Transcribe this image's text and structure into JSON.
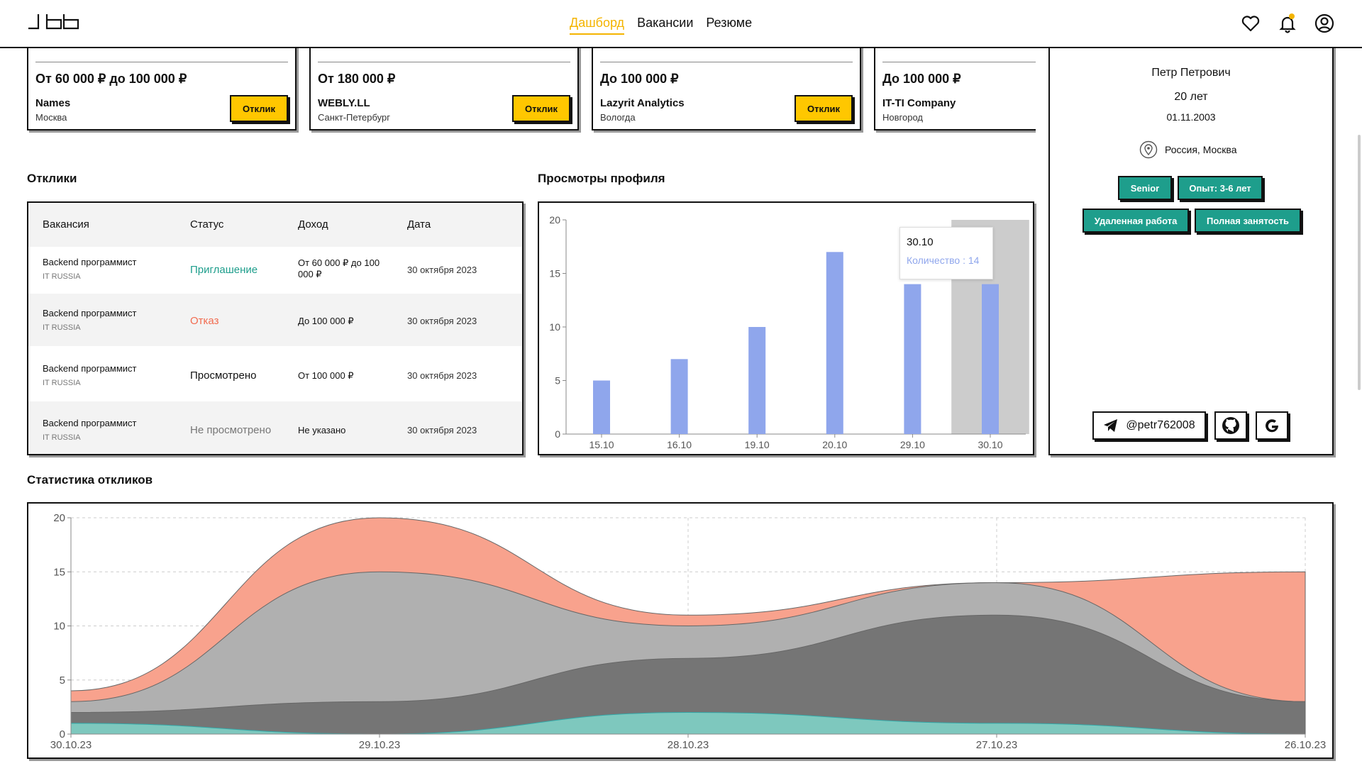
{
  "header": {
    "nav": [
      {
        "label": "Дашборд",
        "active": true
      },
      {
        "label": "Вакансии",
        "active": false
      },
      {
        "label": "Резюме",
        "active": false
      }
    ],
    "accent_color": "#f4b400"
  },
  "vacancies": [
    {
      "salary": "От 60 000 ₽ до 100 000 ₽",
      "company": "Names",
      "city": "Москва",
      "apply_label": "Отклик"
    },
    {
      "salary": "От 180 000 ₽",
      "company": "WEBLY.LL",
      "city": "Санкт-Петербург",
      "apply_label": "Отклик"
    },
    {
      "salary": "До 100 000 ₽",
      "company": "Lazyrit Analytics",
      "city": "Вологда",
      "apply_label": "Отклик"
    },
    {
      "salary": "До 100 000 ₽",
      "company": "IT-TI Company",
      "city": "Новгород",
      "apply_label": "Отклик"
    }
  ],
  "responses": {
    "title": "Отклики",
    "columns": [
      "Вакансия",
      "Статус",
      "Доход",
      "Дата"
    ],
    "rows": [
      {
        "vacancy": "Backend программист",
        "company": "IT RUSSIA",
        "status": "Приглашение",
        "status_type": "invited",
        "income": "От 60 000 ₽ до 100 000 ₽",
        "date": "30 октября 2023"
      },
      {
        "vacancy": "Backend программист",
        "company": "IT RUSSIA",
        "status": "Отказ",
        "status_type": "rejected",
        "income": "До 100 000 ₽",
        "date": "30 октября 2023"
      },
      {
        "vacancy": "Backend программист",
        "company": "IT RUSSIA",
        "status": "Просмотрено",
        "status_type": "viewed",
        "income": "От 100 000 ₽",
        "date": "30 октября 2023"
      },
      {
        "vacancy": "Backend программист",
        "company": "IT RUSSIA",
        "status": "Не просмотрено",
        "status_type": "not_viewed",
        "income": "Не указано",
        "date": "30 октября 2023"
      }
    ]
  },
  "views": {
    "title": "Просмотры профиля",
    "tooltip": {
      "date": "30.10",
      "label": "Количество : 14"
    }
  },
  "profile": {
    "name": "Петр Петрович",
    "age": "20 лет",
    "dob": "01.11.2003",
    "location": "Россия, Москва",
    "tags": [
      "Senior",
      "Опыт: 3-6 лет",
      "Удаленная работа",
      "Полная занятость"
    ],
    "telegram": "@petr762008",
    "social_icons": [
      "telegram-icon",
      "github-icon",
      "google-icon"
    ]
  },
  "stats": {
    "title": "Статистика откликов"
  },
  "chart_data": [
    {
      "type": "bar",
      "categories": [
        "15.10",
        "16.10",
        "19.10",
        "20.10",
        "29.10",
        "30.10"
      ],
      "values": [
        5,
        7,
        10,
        17,
        14,
        14
      ],
      "ylim": [
        0,
        20
      ],
      "yticks": [
        0,
        5,
        10,
        15,
        20
      ],
      "highlighted": "30.10",
      "color": "#8fa6ec"
    },
    {
      "type": "area",
      "stacked": true,
      "x": [
        "30.10.23",
        "29.10.23",
        "28.10.23",
        "27.10.23",
        "26.10.23"
      ],
      "ylim": [
        0,
        20
      ],
      "yticks": [
        0,
        5,
        10,
        15,
        20
      ],
      "series": [
        {
          "values": [
            1,
            0,
            2,
            1,
            0
          ],
          "color": "#7ec8be"
        },
        {
          "values": [
            1,
            3,
            5,
            10,
            3
          ],
          "color": "#757575"
        },
        {
          "values": [
            1,
            12,
            3,
            3,
            0
          ],
          "color": "#b0b0b0"
        },
        {
          "values": [
            1,
            5,
            1,
            0,
            12
          ],
          "color": "#f8a28d"
        }
      ]
    }
  ]
}
